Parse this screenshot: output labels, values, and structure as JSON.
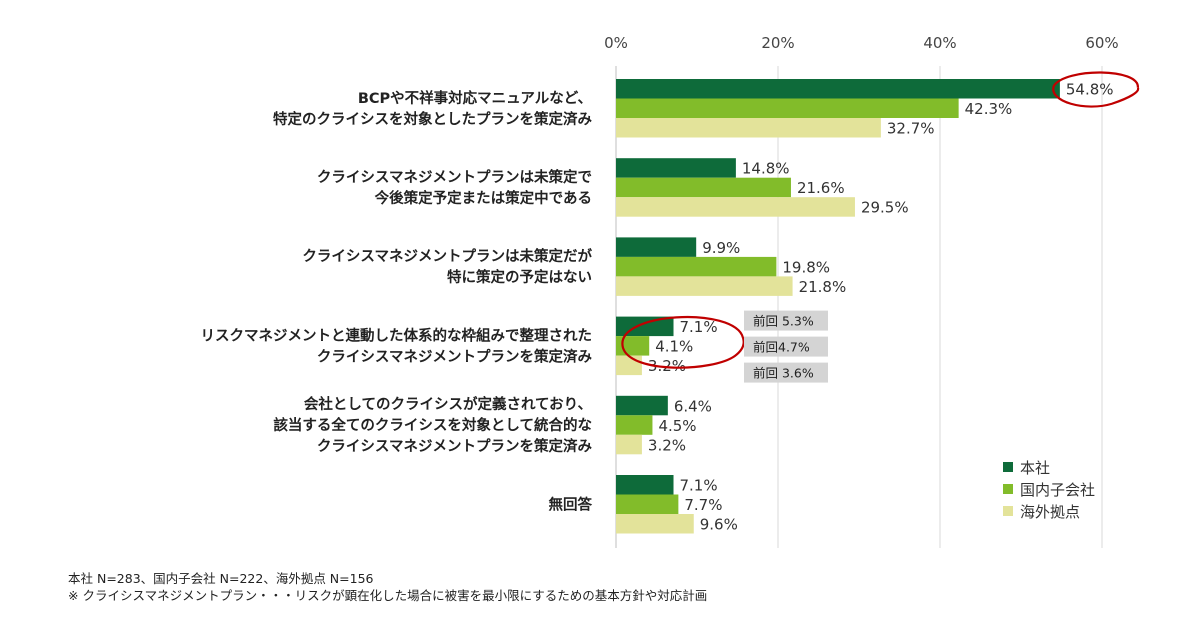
{
  "chart_data": {
    "type": "bar",
    "orientation": "horizontal",
    "x_ticks": [
      "0%",
      "20%",
      "40%",
      "60%"
    ],
    "xlim": [
      0,
      60
    ],
    "grid": true,
    "legend_position": "bottom-right",
    "categories": [
      [
        "BCPや不祥事対応マニュアルなど、",
        "特定のクライシスを対象としたプランを策定済み"
      ],
      [
        "クライシスマネジメントプランは未策定で",
        "今後策定予定または策定中である"
      ],
      [
        "クライシスマネジメントプランは未策定だが",
        "特に策定の予定はない"
      ],
      [
        "リスクマネジメントと連動した体系的な枠組みで整理された",
        "クライシスマネジメントプランを策定済み"
      ],
      [
        "会社としてのクライシスが定義されており、",
        "該当する全てのクライシスを対象として統合的な",
        "クライシスマネジメントプランを策定済み"
      ],
      [
        "無回答"
      ]
    ],
    "series": [
      {
        "name": "本社",
        "color": "#0e6b3a",
        "values": [
          54.8,
          14.8,
          9.9,
          7.1,
          6.4,
          7.1
        ],
        "labels": [
          "54.8%",
          "14.8%",
          "9.9%",
          "7.1%",
          "6.4%",
          "7.1%"
        ]
      },
      {
        "name": "国内子会社",
        "color": "#82bc2a",
        "values": [
          42.3,
          21.6,
          19.8,
          4.1,
          4.5,
          7.7
        ],
        "labels": [
          "42.3%",
          "21.6%",
          "19.8%",
          "4.1%",
          "4.5%",
          "7.7%"
        ]
      },
      {
        "name": "海外拠点",
        "color": "#e3e39a",
        "values": [
          32.7,
          29.5,
          21.8,
          3.2,
          3.2,
          9.6
        ],
        "labels": [
          "32.7%",
          "29.5%",
          "21.8%",
          "3.2%",
          "3.2%",
          "9.6%"
        ]
      }
    ],
    "annotations": {
      "previous_labels": [
        "前回 5.3%",
        "前回4.7%",
        "前回 3.6%"
      ],
      "previous_category_index": 3,
      "circle_highlights": [
        {
          "category_index": 0,
          "series_index": 0
        },
        {
          "category_index": 3,
          "series_index": "all"
        }
      ],
      "circle_color": "#c00000",
      "box_color": "#d4d4d4"
    }
  },
  "notes": {
    "line1": "本社 N=283、国内子会社 N=222、海外拠点 N=156",
    "line2": "※ クライシスマネジメントプラン・・・リスクが顕在化した場合に被害を最小限にするための基本方針や対応計画"
  }
}
